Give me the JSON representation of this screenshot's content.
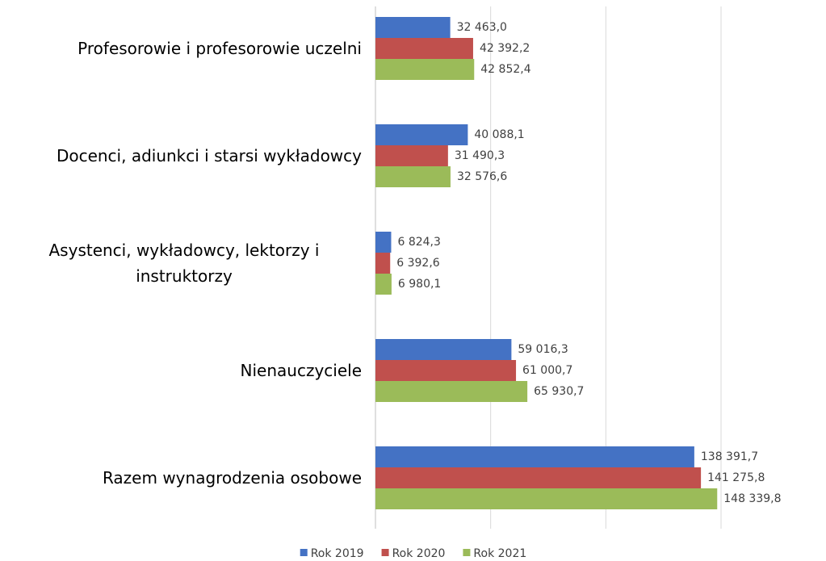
{
  "chart_data": {
    "type": "hbar",
    "categories": [
      "Profesorowie i profesorowie uczelni",
      "Docenci, adiunkci i starsi wykładowcy",
      "Asystenci, wykładowcy, lektorzy i instruktorzy",
      "Nienauczyciele",
      "Razem wynagrodzenia osobowe"
    ],
    "series": [
      {
        "name": "Rok 2019",
        "color": "#4472c4",
        "values": [
          32463.0,
          40088.1,
          6824.3,
          59016.3,
          138391.7
        ],
        "value_labels": [
          "32 463,0",
          "40 088,1",
          "6 824,3",
          "59 016,3",
          "138 391,7"
        ]
      },
      {
        "name": "Rok 2020",
        "color": "#c0504d",
        "values": [
          42392.2,
          31490.3,
          6392.6,
          61000.7,
          141275.8
        ],
        "value_labels": [
          "42 392,2",
          "31 490,3",
          "6 392,6",
          "61 000,7",
          "141 275,8"
        ]
      },
      {
        "name": "Rok 2021",
        "color": "#9bbb59",
        "values": [
          42852.4,
          32576.6,
          6980.1,
          65930.7,
          148339.8
        ],
        "value_labels": [
          "42 852,4",
          "32 576,6",
          "6 980,1",
          "65 930,7",
          "148 339,8"
        ]
      }
    ],
    "xlim": [
      0,
      150000
    ],
    "xticks": [
      0,
      50000,
      100000,
      150000
    ],
    "grid": true,
    "legend": "bottom"
  }
}
